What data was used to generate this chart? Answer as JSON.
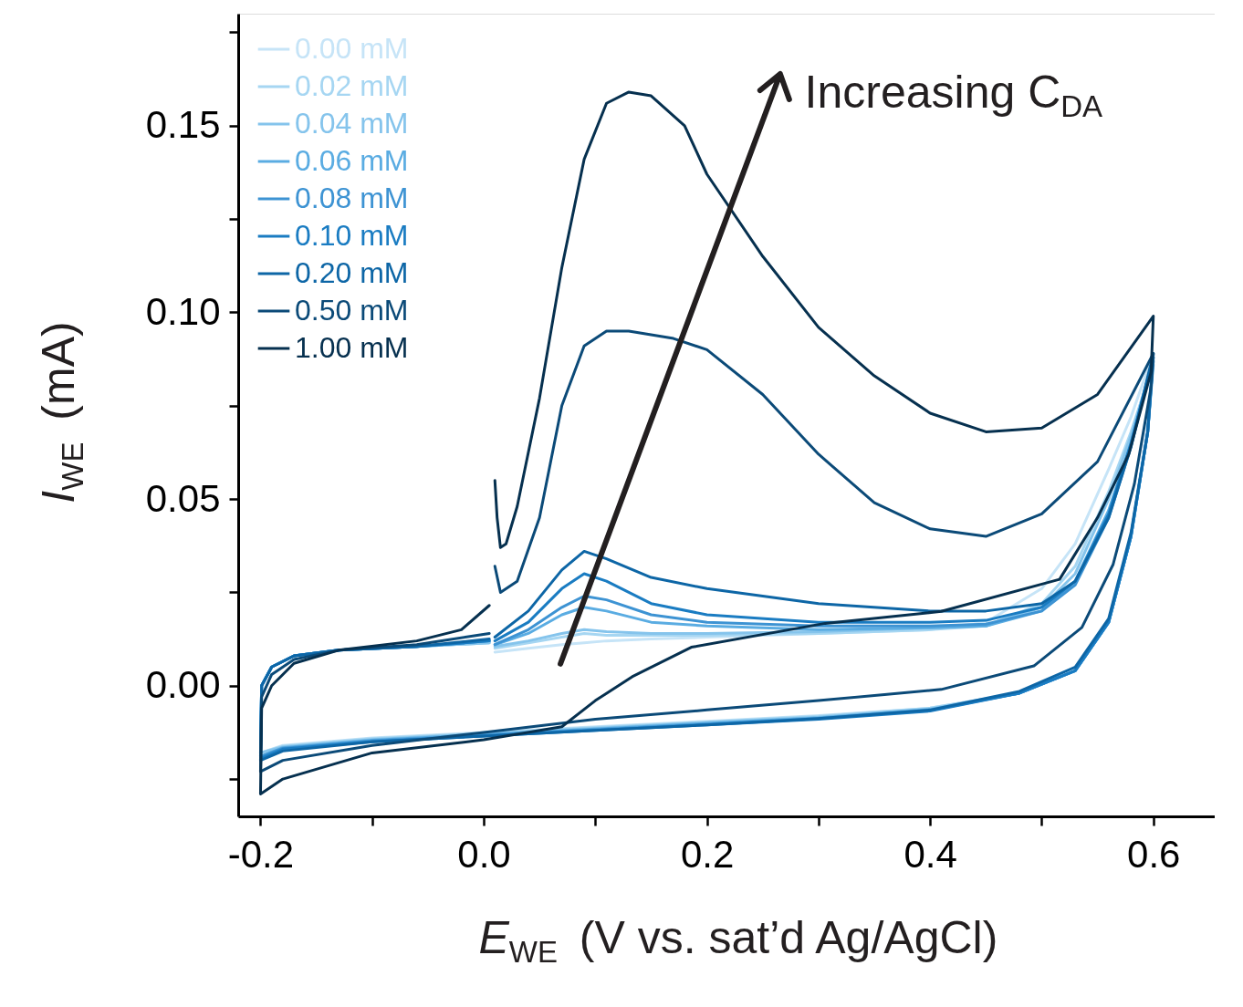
{
  "chart_data": {
    "type": "line",
    "xlabel": "E$_{WE}$ (V vs. sat’d Ag/AgCl)",
    "ylabel": "I$_{WE}$ (mA)",
    "annotations": [
      "Increasing C$_{DA}$"
    ],
    "xlim": [
      -0.22,
      0.655
    ],
    "ylim": [
      -0.035,
      0.18
    ],
    "xticks": [
      {
        "value": -0.2,
        "label": "-0.2"
      },
      {
        "value": -0.1,
        "label": null
      },
      {
        "value": 0.0,
        "label": "0.0"
      },
      {
        "value": 0.1,
        "label": null
      },
      {
        "value": 0.2,
        "label": "0.2"
      },
      {
        "value": 0.3,
        "label": null
      },
      {
        "value": 0.4,
        "label": "0.4"
      },
      {
        "value": 0.5,
        "label": null
      },
      {
        "value": 0.6,
        "label": "0.6"
      }
    ],
    "yticks": [
      {
        "value": -0.025,
        "label": null
      },
      {
        "value": 0.0,
        "label": "0.00"
      },
      {
        "value": 0.025,
        "label": null
      },
      {
        "value": 0.05,
        "label": "0.05"
      },
      {
        "value": 0.075,
        "label": null
      },
      {
        "value": 0.1,
        "label": "0.10"
      },
      {
        "value": 0.125,
        "label": null
      },
      {
        "value": 0.15,
        "label": "0.15"
      },
      {
        "value": 0.175,
        "label": null
      }
    ],
    "grid": false,
    "legend": "top left",
    "marker": "none",
    "line_style": "solid",
    "series": [
      {
        "name": "0.00 mM",
        "color": "#c6e4f7",
        "x": [
          0.01,
          0.04,
          0.07,
          0.09,
          0.11,
          0.15,
          0.2,
          0.3,
          0.4,
          0.45,
          0.5,
          0.53,
          0.56,
          0.58,
          0.6,
          0.595,
          0.58,
          0.56,
          0.53,
          0.48,
          0.4,
          0.3,
          0.2,
          0.1,
          0.0,
          -0.1,
          -0.18,
          -0.2,
          -0.199,
          -0.19,
          -0.17,
          -0.13,
          -0.06,
          0.005
        ],
        "values": [
          0.009,
          0.01,
          0.011,
          0.0115,
          0.012,
          0.0125,
          0.013,
          0.014,
          0.015,
          0.017,
          0.026,
          0.038,
          0.058,
          0.072,
          0.089,
          0.07,
          0.04,
          0.017,
          0.004,
          -0.002,
          -0.006,
          -0.008,
          -0.0095,
          -0.011,
          -0.0125,
          -0.014,
          -0.016,
          -0.018,
          0.0,
          0.005,
          0.008,
          0.0095,
          0.0105,
          0.0115
        ]
      },
      {
        "name": "0.02 mM",
        "color": "#a6d6f2",
        "x": [
          0.01,
          0.04,
          0.07,
          0.09,
          0.11,
          0.15,
          0.2,
          0.3,
          0.4,
          0.45,
          0.5,
          0.53,
          0.56,
          0.58,
          0.6,
          0.595,
          0.58,
          0.56,
          0.53,
          0.48,
          0.4,
          0.3,
          0.2,
          0.1,
          0.0,
          -0.1,
          -0.18,
          -0.2,
          -0.199,
          -0.19,
          -0.17,
          -0.13,
          -0.06,
          0.005
        ],
        "values": [
          0.01,
          0.0115,
          0.013,
          0.014,
          0.0135,
          0.0135,
          0.0135,
          0.014,
          0.015,
          0.016,
          0.022,
          0.032,
          0.052,
          0.068,
          0.086,
          0.068,
          0.04,
          0.017,
          0.004,
          -0.002,
          -0.006,
          -0.0082,
          -0.0097,
          -0.0112,
          -0.0127,
          -0.0142,
          -0.0162,
          -0.018,
          0.0,
          0.005,
          0.008,
          0.0095,
          0.0105,
          0.0115
        ]
      },
      {
        "name": "0.04 mM",
        "color": "#85c4ec",
        "x": [
          0.01,
          0.04,
          0.07,
          0.09,
          0.11,
          0.15,
          0.2,
          0.3,
          0.4,
          0.45,
          0.5,
          0.53,
          0.56,
          0.58,
          0.6,
          0.595,
          0.58,
          0.56,
          0.53,
          0.48,
          0.4,
          0.3,
          0.2,
          0.1,
          0.0,
          -0.1,
          -0.18,
          -0.2,
          -0.199,
          -0.19,
          -0.17,
          -0.13,
          -0.06,
          0.005
        ],
        "values": [
          0.0105,
          0.012,
          0.014,
          0.015,
          0.0145,
          0.014,
          0.014,
          0.0145,
          0.0155,
          0.016,
          0.021,
          0.03,
          0.05,
          0.067,
          0.087,
          0.068,
          0.04,
          0.017,
          0.004,
          -0.002,
          -0.0062,
          -0.0084,
          -0.0099,
          -0.0114,
          -0.0129,
          -0.0144,
          -0.0164,
          -0.018,
          0.0,
          0.005,
          0.008,
          0.0095,
          0.0105,
          0.0115
        ]
      },
      {
        "name": "0.06 mM",
        "color": "#5aace2",
        "x": [
          0.01,
          0.04,
          0.07,
          0.09,
          0.11,
          0.15,
          0.2,
          0.3,
          0.4,
          0.45,
          0.5,
          0.53,
          0.56,
          0.58,
          0.6,
          0.595,
          0.58,
          0.56,
          0.53,
          0.48,
          0.4,
          0.3,
          0.2,
          0.1,
          0.0,
          -0.1,
          -0.18,
          -0.2,
          -0.199,
          -0.19,
          -0.17,
          -0.13,
          -0.06,
          0.005
        ],
        "values": [
          0.011,
          0.014,
          0.019,
          0.021,
          0.02,
          0.017,
          0.016,
          0.015,
          0.0155,
          0.016,
          0.02,
          0.028,
          0.047,
          0.065,
          0.087,
          0.068,
          0.04,
          0.017,
          0.004,
          -0.002,
          -0.0064,
          -0.0086,
          -0.0101,
          -0.0116,
          -0.0131,
          -0.0146,
          -0.0166,
          -0.019,
          0.0,
          0.005,
          0.008,
          0.0095,
          0.0105,
          0.012
        ]
      },
      {
        "name": "0.08 mM",
        "color": "#3d93d3",
        "x": [
          0.01,
          0.04,
          0.07,
          0.09,
          0.11,
          0.15,
          0.2,
          0.3,
          0.4,
          0.45,
          0.5,
          0.53,
          0.56,
          0.58,
          0.6,
          0.595,
          0.58,
          0.56,
          0.53,
          0.48,
          0.4,
          0.3,
          0.2,
          0.1,
          0.0,
          -0.1,
          -0.18,
          -0.2,
          -0.199,
          -0.19,
          -0.17,
          -0.13,
          -0.06,
          0.005
        ],
        "values": [
          0.011,
          0.015,
          0.021,
          0.024,
          0.023,
          0.019,
          0.017,
          0.016,
          0.016,
          0.0165,
          0.02,
          0.027,
          0.045,
          0.064,
          0.088,
          0.068,
          0.04,
          0.017,
          0.004,
          -0.002,
          -0.0066,
          -0.0088,
          -0.0103,
          -0.0118,
          -0.0133,
          -0.0148,
          -0.0168,
          -0.019,
          0.0,
          0.005,
          0.008,
          0.0095,
          0.0105,
          0.012
        ]
      },
      {
        "name": "0.10 mM",
        "color": "#1a7cc2",
        "x": [
          0.01,
          0.04,
          0.07,
          0.09,
          0.11,
          0.15,
          0.2,
          0.3,
          0.4,
          0.45,
          0.5,
          0.53,
          0.56,
          0.58,
          0.6,
          0.595,
          0.58,
          0.56,
          0.53,
          0.48,
          0.4,
          0.3,
          0.2,
          0.1,
          0.0,
          -0.1,
          -0.18,
          -0.2,
          -0.199,
          -0.19,
          -0.17,
          -0.13,
          -0.06,
          0.005
        ],
        "values": [
          0.012,
          0.017,
          0.026,
          0.03,
          0.028,
          0.022,
          0.019,
          0.017,
          0.017,
          0.0175,
          0.021,
          0.028,
          0.046,
          0.065,
          0.088,
          0.068,
          0.04,
          0.017,
          0.004,
          -0.002,
          -0.0068,
          -0.009,
          -0.0105,
          -0.012,
          -0.0135,
          -0.015,
          -0.017,
          -0.0195,
          0.0,
          0.005,
          0.008,
          0.0095,
          0.0105,
          0.012
        ]
      },
      {
        "name": "0.20 mM",
        "color": "#0d66a6",
        "x": [
          0.01,
          0.04,
          0.07,
          0.09,
          0.11,
          0.15,
          0.2,
          0.3,
          0.4,
          0.45,
          0.5,
          0.53,
          0.56,
          0.58,
          0.6,
          0.595,
          0.58,
          0.56,
          0.53,
          0.48,
          0.4,
          0.3,
          0.2,
          0.1,
          0.0,
          -0.1,
          -0.18,
          -0.2,
          -0.199,
          -0.19,
          -0.17,
          -0.13,
          -0.06,
          0.005
        ],
        "values": [
          0.013,
          0.02,
          0.031,
          0.036,
          0.034,
          0.029,
          0.026,
          0.022,
          0.02,
          0.02,
          0.022,
          0.028,
          0.045,
          0.064,
          0.089,
          0.068,
          0.041,
          0.018,
          0.005,
          -0.0015,
          -0.0065,
          -0.0088,
          -0.0105,
          -0.012,
          -0.0135,
          -0.015,
          -0.0175,
          -0.02,
          0.0,
          0.005,
          0.008,
          0.0095,
          0.0105,
          0.0125
        ]
      },
      {
        "name": "0.50 mM",
        "color": "#0b4a78",
        "x": [
          0.01,
          0.015,
          0.03,
          0.05,
          0.07,
          0.09,
          0.11,
          0.13,
          0.17,
          0.2,
          0.25,
          0.3,
          0.35,
          0.4,
          0.45,
          0.5,
          0.55,
          0.6,
          0.598,
          0.583,
          0.564,
          0.536,
          0.493,
          0.41,
          0.3,
          0.2,
          0.1,
          0.0,
          -0.1,
          -0.18,
          -0.2,
          -0.199,
          -0.19,
          -0.17,
          -0.13,
          -0.06,
          0.005
        ],
        "values": [
          0.032,
          0.025,
          0.028,
          0.045,
          0.075,
          0.091,
          0.095,
          0.095,
          0.093,
          0.09,
          0.078,
          0.062,
          0.049,
          0.042,
          0.04,
          0.046,
          0.06,
          0.089,
          0.08,
          0.054,
          0.0325,
          0.0156,
          0.0053,
          -0.001,
          -0.004,
          -0.0065,
          -0.009,
          -0.0125,
          -0.016,
          -0.02,
          -0.023,
          -0.003,
          0.003,
          0.007,
          0.0095,
          0.011,
          0.014
        ]
      },
      {
        "name": "1.00 mM",
        "color": "#06304f",
        "x": [
          0.01,
          0.012,
          0.015,
          0.02,
          0.03,
          0.05,
          0.07,
          0.09,
          0.11,
          0.13,
          0.15,
          0.18,
          0.2,
          0.25,
          0.3,
          0.35,
          0.4,
          0.45,
          0.5,
          0.55,
          0.6,
          0.598,
          0.578,
          0.55,
          0.516,
          0.41,
          0.306,
          0.186,
          0.133,
          0.1,
          0.07,
          0.0,
          -0.1,
          -0.18,
          -0.2,
          -0.199,
          -0.19,
          -0.17,
          -0.13,
          -0.06,
          -0.02,
          0.005
        ],
        "values": [
          0.055,
          0.045,
          0.037,
          0.038,
          0.048,
          0.077,
          0.112,
          0.141,
          0.156,
          0.159,
          0.158,
          0.15,
          0.137,
          0.115,
          0.096,
          0.083,
          0.073,
          0.068,
          0.069,
          0.078,
          0.099,
          0.084,
          0.062,
          0.045,
          0.0285,
          0.0199,
          0.0167,
          0.0103,
          0.0024,
          -0.004,
          -0.011,
          -0.0145,
          -0.018,
          -0.025,
          -0.029,
          -0.006,
          0.0,
          0.006,
          0.0095,
          0.012,
          0.015,
          0.0215
        ]
      }
    ]
  }
}
